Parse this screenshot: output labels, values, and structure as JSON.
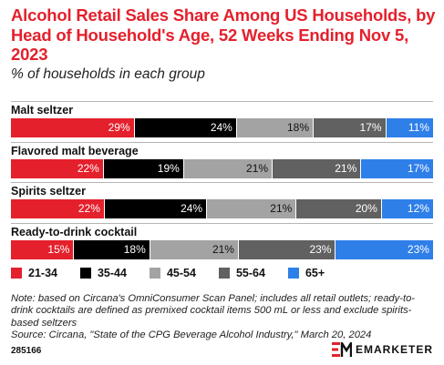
{
  "title": "Alcohol Retail Sales Share Among US Households, by Head of Household's Age, 52 Weeks Ending Nov 5, 2023",
  "subtitle": "% of households in each group",
  "colors": {
    "21-34": "#e4202c",
    "35-44": "#000000",
    "45-54": "#a3a3a3",
    "55-64": "#616161",
    "65+": "#2f7fe9"
  },
  "chart_data": {
    "type": "bar",
    "orientation": "horizontal",
    "stacked": true,
    "categories": [
      "Malt seltzer",
      "Flavored malt beverage",
      "Spirits seltzer",
      "Ready-to-drink cocktail"
    ],
    "series": [
      {
        "name": "21-34",
        "values": [
          29,
          22,
          22,
          15
        ]
      },
      {
        "name": "35-44",
        "values": [
          24,
          19,
          24,
          18
        ]
      },
      {
        "name": "45-54",
        "values": [
          18,
          21,
          21,
          21
        ]
      },
      {
        "name": "55-64",
        "values": [
          17,
          21,
          20,
          23
        ]
      },
      {
        "name": "65+",
        "values": [
          11,
          17,
          12,
          23
        ]
      }
    ],
    "value_suffix": "%",
    "legend_position": "bottom"
  },
  "note": "Note: based on Circana's OmniConsumer Scan Panel; includes all retail outlets; ready-to-drink cocktails are defined as premixed cocktail items 500 mL or less and exclude spirits-based seltzers",
  "source": "Source: Circana, \"State of the CPG Beverage Alcohol Industry,\" March 20, 2024",
  "chart_id": "285166",
  "brand": "EMARKETER"
}
